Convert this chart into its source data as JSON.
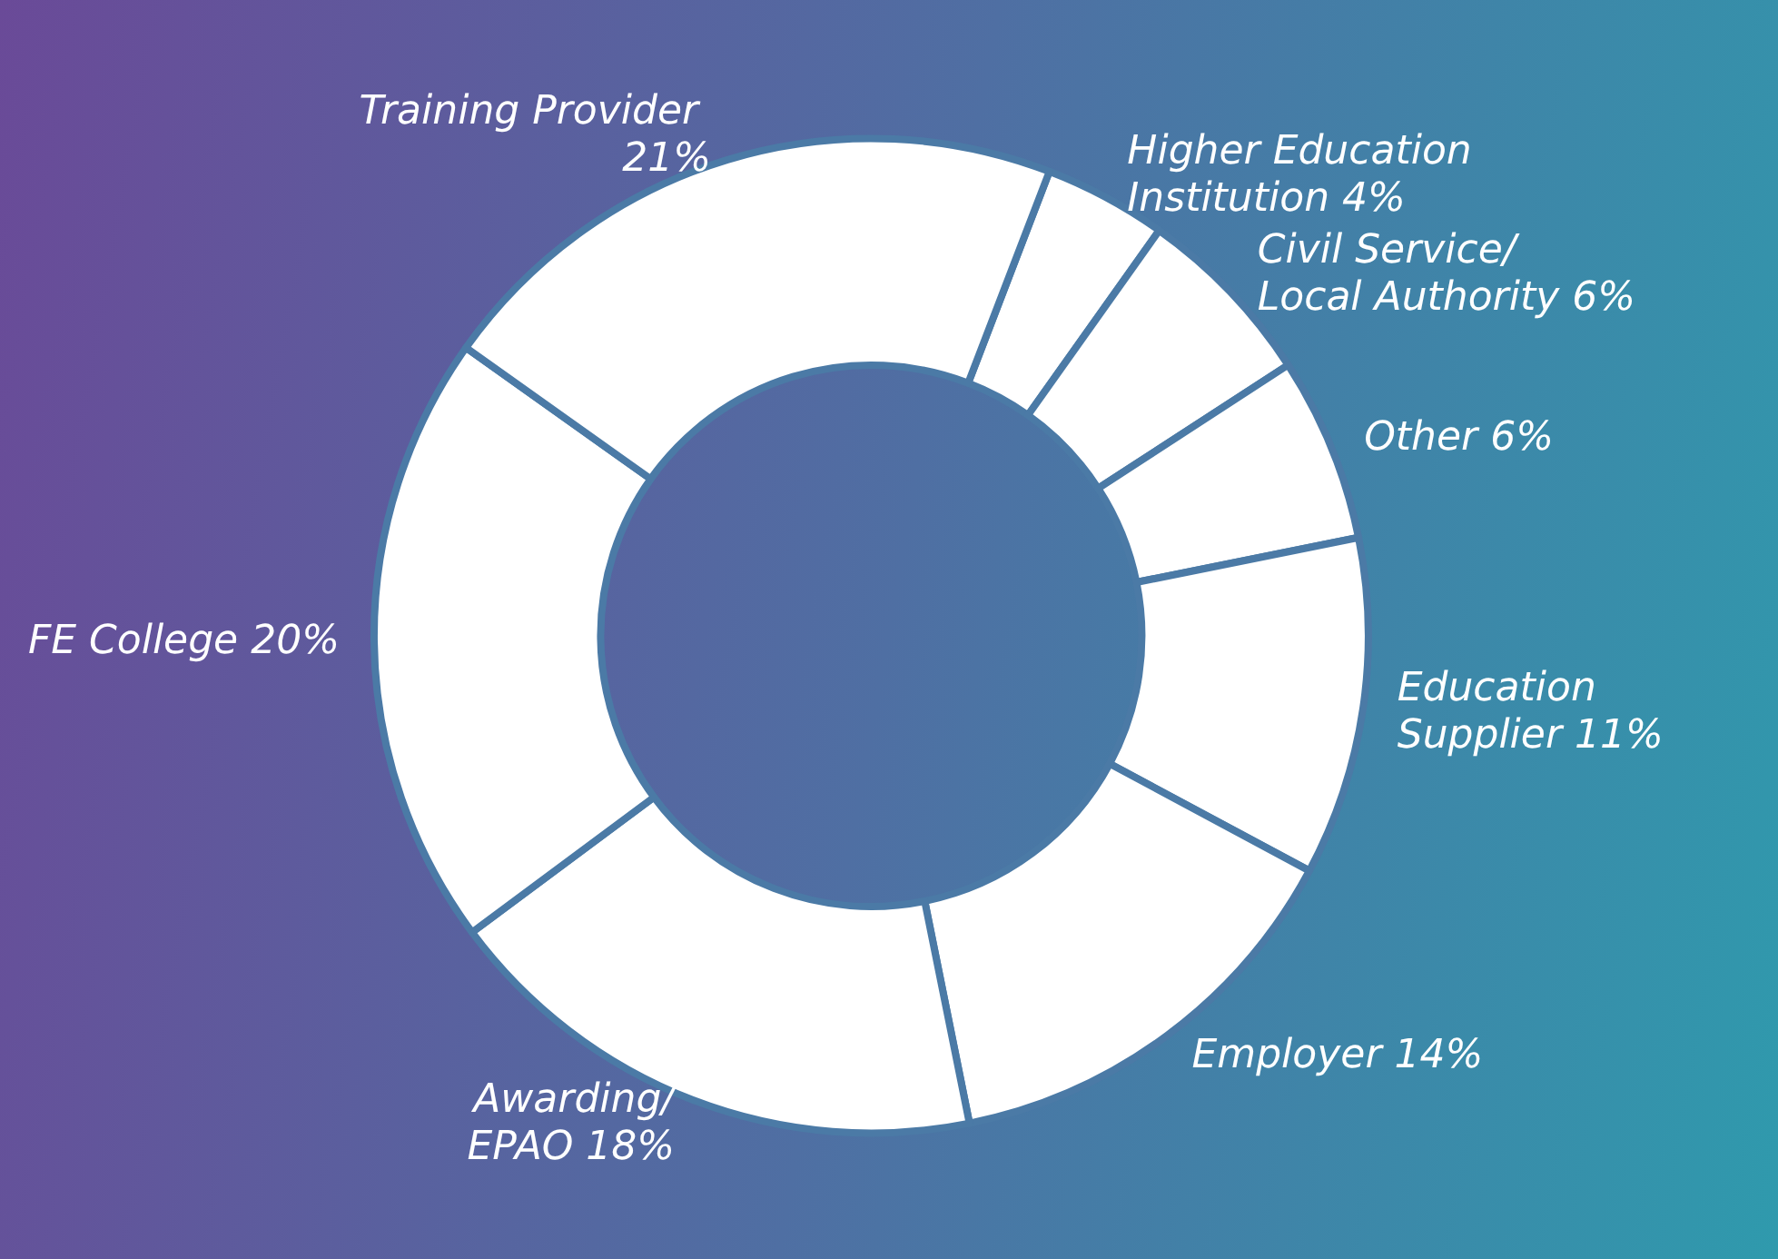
{
  "chart_data": {
    "type": "donut",
    "categories": [
      "Higher Education\nInstitution",
      "Civil Service/\nLocal Authority",
      "Other",
      "Education\nSupplier",
      "Employer",
      "Awarding/\nEPAO",
      "FE College",
      "Training Provider"
    ],
    "values": [
      4,
      6,
      6,
      11,
      14,
      18,
      20,
      21
    ],
    "value_labels": [
      "4%",
      "6%",
      "6%",
      "11%",
      "14%",
      "18%",
      "20%",
      "21%"
    ],
    "colors": [
      "#ffffff",
      "#ffffff",
      "#ffffff",
      "#ffffff",
      "#ffffff",
      "#ffffff",
      "#ffffff",
      "#ffffff"
    ],
    "legend": false
  }
}
